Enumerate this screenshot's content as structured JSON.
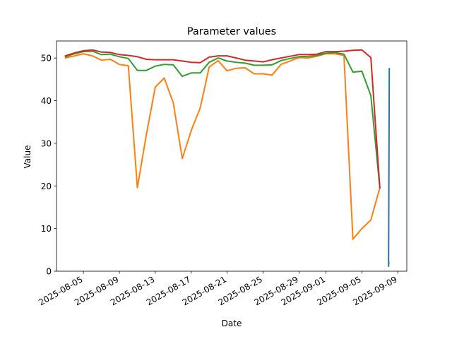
{
  "chart_data": {
    "type": "line",
    "title": "Parameter values",
    "xlabel": "Date",
    "ylabel": "Value",
    "xlim": [
      "2025-08-02",
      "2025-09-10"
    ],
    "ylim": [
      0,
      54
    ],
    "grid": false,
    "x_ticks": [
      "2025-08-05",
      "2025-08-09",
      "2025-08-13",
      "2025-08-17",
      "2025-08-21",
      "2025-08-25",
      "2025-08-29",
      "2025-09-01",
      "2025-09-05",
      "2025-09-09"
    ],
    "y_ticks": [
      0,
      10,
      20,
      30,
      40,
      50
    ],
    "series": [
      {
        "color": "#1f77b4",
        "points": [
          [
            "2025-09-08",
            47.5
          ],
          [
            "2025-09-08",
            1.5
          ],
          [
            "2025-09-08",
            2.0
          ],
          [
            "2025-09-08",
            1.2
          ]
        ]
      },
      {
        "color": "#ff7f0e",
        "points": [
          [
            "2025-08-03",
            50.0
          ],
          [
            "2025-08-04",
            50.5
          ],
          [
            "2025-08-05",
            51.0
          ],
          [
            "2025-08-06",
            50.5
          ],
          [
            "2025-08-07",
            49.5
          ],
          [
            "2025-08-08",
            49.7
          ],
          [
            "2025-08-09",
            48.5
          ],
          [
            "2025-08-10",
            48.2
          ],
          [
            "2025-08-11",
            19.6
          ],
          [
            "2025-08-12",
            32.0
          ],
          [
            "2025-08-13",
            43.2
          ],
          [
            "2025-08-14",
            45.3
          ],
          [
            "2025-08-15",
            39.5
          ],
          [
            "2025-08-16",
            26.4
          ],
          [
            "2025-08-17",
            33.0
          ],
          [
            "2025-08-18",
            38.3
          ],
          [
            "2025-08-19",
            47.9
          ],
          [
            "2025-08-20",
            49.4
          ],
          [
            "2025-08-21",
            47.0
          ],
          [
            "2025-08-22",
            47.6
          ],
          [
            "2025-08-23",
            47.7
          ],
          [
            "2025-08-24",
            46.3
          ],
          [
            "2025-08-25",
            46.3
          ],
          [
            "2025-08-26",
            46.0
          ],
          [
            "2025-08-27",
            48.5
          ],
          [
            "2025-08-28",
            49.3
          ],
          [
            "2025-08-29",
            50.1
          ],
          [
            "2025-08-30",
            50.0
          ],
          [
            "2025-08-31",
            50.4
          ],
          [
            "2025-09-01",
            51.0
          ],
          [
            "2025-09-02",
            51.0
          ],
          [
            "2025-09-03",
            50.6
          ],
          [
            "2025-09-04",
            7.5
          ],
          [
            "2025-09-05",
            10.0
          ],
          [
            "2025-09-06",
            12.0
          ],
          [
            "2025-09-07",
            19.6
          ]
        ]
      },
      {
        "color": "#2ca02c",
        "points": [
          [
            "2025-08-03",
            50.3
          ],
          [
            "2025-08-04",
            51.0
          ],
          [
            "2025-08-05",
            51.5
          ],
          [
            "2025-08-06",
            51.6
          ],
          [
            "2025-08-07",
            50.8
          ],
          [
            "2025-08-08",
            50.9
          ],
          [
            "2025-08-09",
            50.3
          ],
          [
            "2025-08-10",
            49.9
          ],
          [
            "2025-08-11",
            47.1
          ],
          [
            "2025-08-12",
            47.1
          ],
          [
            "2025-08-13",
            48.1
          ],
          [
            "2025-08-14",
            48.5
          ],
          [
            "2025-08-15",
            48.4
          ],
          [
            "2025-08-16",
            45.7
          ],
          [
            "2025-08-17",
            46.5
          ],
          [
            "2025-08-18",
            46.5
          ],
          [
            "2025-08-19",
            49.0
          ],
          [
            "2025-08-20",
            50.0
          ],
          [
            "2025-08-21",
            49.3
          ],
          [
            "2025-08-22",
            49.0
          ],
          [
            "2025-08-23",
            48.8
          ],
          [
            "2025-08-24",
            48.3
          ],
          [
            "2025-08-25",
            48.3
          ],
          [
            "2025-08-26",
            48.4
          ],
          [
            "2025-08-27",
            49.4
          ],
          [
            "2025-08-28",
            49.9
          ],
          [
            "2025-08-29",
            50.3
          ],
          [
            "2025-08-30",
            50.4
          ],
          [
            "2025-08-31",
            50.6
          ],
          [
            "2025-09-01",
            51.1
          ],
          [
            "2025-09-02",
            51.3
          ],
          [
            "2025-09-03",
            50.9
          ],
          [
            "2025-09-04",
            46.7
          ],
          [
            "2025-09-05",
            46.9
          ],
          [
            "2025-09-06",
            41.2
          ],
          [
            "2025-09-07",
            19.6
          ]
        ]
      },
      {
        "color": "#d62728",
        "points": [
          [
            "2025-08-03",
            50.5
          ],
          [
            "2025-08-04",
            51.2
          ],
          [
            "2025-08-05",
            51.7
          ],
          [
            "2025-08-06",
            51.9
          ],
          [
            "2025-08-07",
            51.4
          ],
          [
            "2025-08-08",
            51.3
          ],
          [
            "2025-08-09",
            50.8
          ],
          [
            "2025-08-10",
            50.6
          ],
          [
            "2025-08-11",
            50.3
          ],
          [
            "2025-08-12",
            49.7
          ],
          [
            "2025-08-13",
            49.6
          ],
          [
            "2025-08-14",
            49.6
          ],
          [
            "2025-08-15",
            49.6
          ],
          [
            "2025-08-16",
            49.3
          ],
          [
            "2025-08-17",
            49.0
          ],
          [
            "2025-08-18",
            48.9
          ],
          [
            "2025-08-19",
            50.2
          ],
          [
            "2025-08-20",
            50.5
          ],
          [
            "2025-08-21",
            50.5
          ],
          [
            "2025-08-22",
            50.0
          ],
          [
            "2025-08-23",
            49.5
          ],
          [
            "2025-08-24",
            49.3
          ],
          [
            "2025-08-25",
            49.1
          ],
          [
            "2025-08-26",
            49.6
          ],
          [
            "2025-08-27",
            50.0
          ],
          [
            "2025-08-28",
            50.4
          ],
          [
            "2025-08-29",
            50.8
          ],
          [
            "2025-08-30",
            50.8
          ],
          [
            "2025-08-31",
            50.9
          ],
          [
            "2025-09-01",
            51.5
          ],
          [
            "2025-09-02",
            51.5
          ],
          [
            "2025-09-03",
            51.6
          ],
          [
            "2025-09-04",
            51.8
          ],
          [
            "2025-09-05",
            51.9
          ],
          [
            "2025-09-06",
            50.1
          ],
          [
            "2025-09-07",
            19.6
          ]
        ]
      }
    ]
  }
}
